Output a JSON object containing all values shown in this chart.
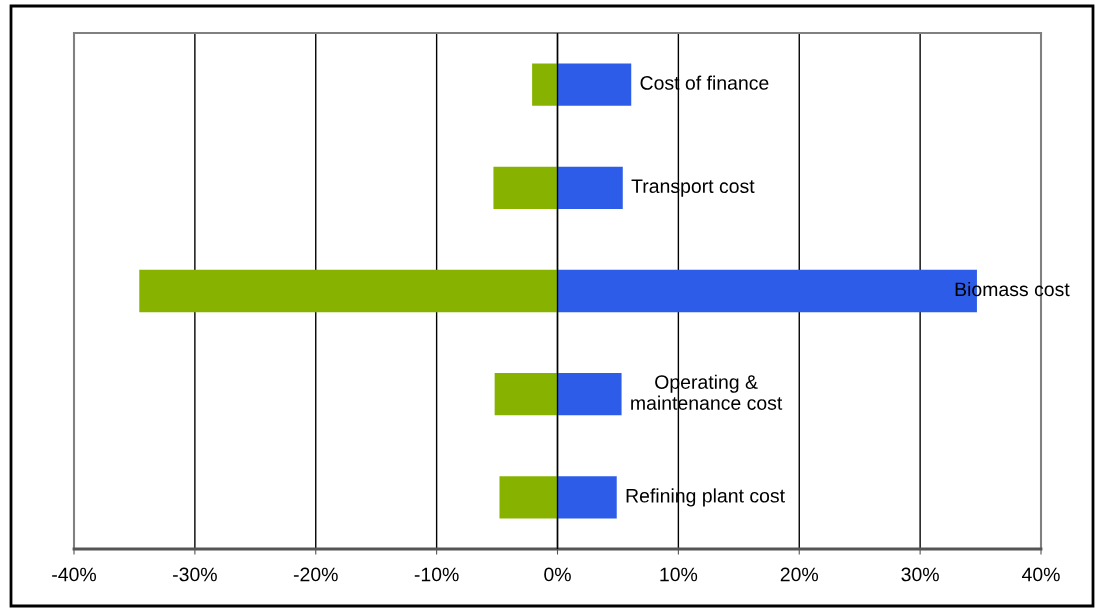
{
  "chart_data": {
    "type": "bar",
    "orientation": "horizontal",
    "stacked": true,
    "categories": [
      "Cost of finance",
      "Transport cost",
      "Biomass cost",
      "Operating & maintenance cost",
      "Refining plant cost"
    ],
    "series": [
      {
        "color": "#87b300",
        "values": [
          -2.1,
          -5.3,
          -34.6,
          -5.2,
          -4.8
        ]
      },
      {
        "color": "#2d5ce8",
        "values": [
          6.1,
          5.4,
          34.7,
          5.3,
          4.9
        ]
      }
    ],
    "xlim": [
      -40,
      40
    ],
    "xticks": [
      {
        "value": -40,
        "label": "-40%"
      },
      {
        "value": -30,
        "label": "-30%"
      },
      {
        "value": -20,
        "label": "-20%"
      },
      {
        "value": -10,
        "label": "-10%"
      },
      {
        "value": 0,
        "label": "0%"
      },
      {
        "value": 10,
        "label": "10%"
      },
      {
        "value": 20,
        "label": "20%"
      },
      {
        "value": 30,
        "label": "30%"
      },
      {
        "value": 40,
        "label": "40%"
      }
    ],
    "grid": "x",
    "tick_labels": "x"
  }
}
